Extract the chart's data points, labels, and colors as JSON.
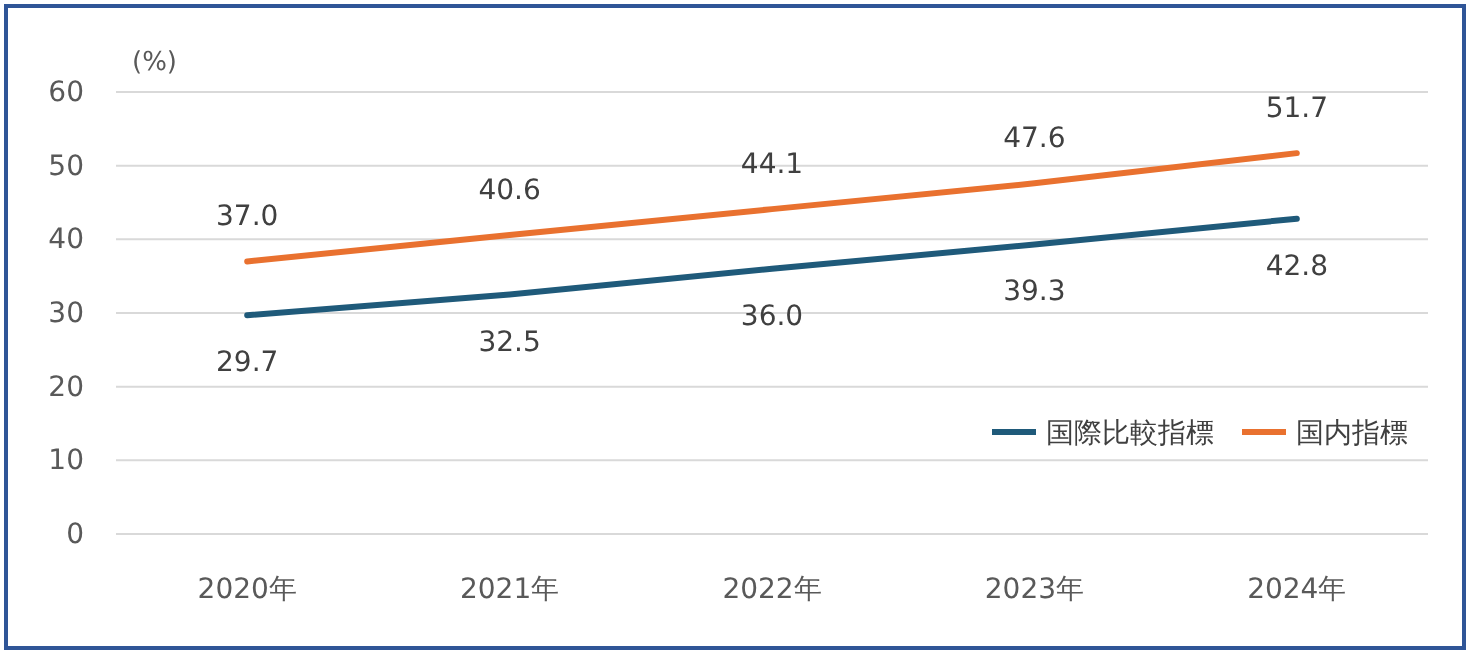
{
  "chart_data": {
    "type": "line",
    "ylabel": "(%)",
    "categories": [
      "2020年",
      "2021年",
      "2022年",
      "2023年",
      "2024年"
    ],
    "series": [
      {
        "name": "国際比較指標",
        "color": "#1f5a7a",
        "values": [
          29.7,
          32.5,
          36.0,
          39.3,
          42.8
        ],
        "value_labels": [
          "29.7",
          "32.5",
          "36.0",
          "39.3",
          "42.8"
        ]
      },
      {
        "name": "国内指標",
        "color": "#e9712f",
        "values": [
          37.0,
          40.6,
          44.1,
          47.6,
          51.7
        ],
        "value_labels": [
          "37.0",
          "40.6",
          "44.1",
          "47.6",
          "51.7"
        ]
      }
    ],
    "ylim": [
      0,
      60
    ],
    "yticks": [
      0,
      10,
      20,
      30,
      40,
      50,
      60
    ],
    "grid": "y",
    "legend": "bottom right",
    "marker": "none",
    "line_style": "solid"
  }
}
